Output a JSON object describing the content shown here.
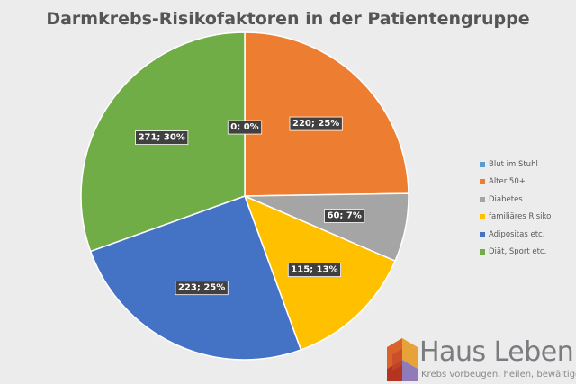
{
  "chart_data": {
    "type": "pie",
    "title": "Darmkrebs-Risikofaktoren in der Patientengruppe",
    "slices": [
      {
        "name": "Blut im Stuhl",
        "value": 0,
        "label": "0; 0%",
        "color": "#5b9bd5"
      },
      {
        "name": "Alter 50+",
        "value": 220,
        "label": "220; 25%",
        "color": "#ed7d31"
      },
      {
        "name": "Diabetes",
        "value": 60,
        "label": "60; 7%",
        "color": "#a5a5a5"
      },
      {
        "name": "familiäres Risiko",
        "value": 115,
        "label": "115; 13%",
        "color": "#ffc000"
      },
      {
        "name": "Adipositas etc.",
        "value": 223,
        "label": "223; 25%",
        "color": "#4472c4"
      },
      {
        "name": "Diät, Sport etc.",
        "value": 271,
        "label": "271; 30%",
        "color": "#70ad47"
      }
    ],
    "legend_position": "right"
  },
  "logo": {
    "title": "Haus Leben",
    "tagline": "Krebs vorbeugen, heilen, bewältigen"
  }
}
